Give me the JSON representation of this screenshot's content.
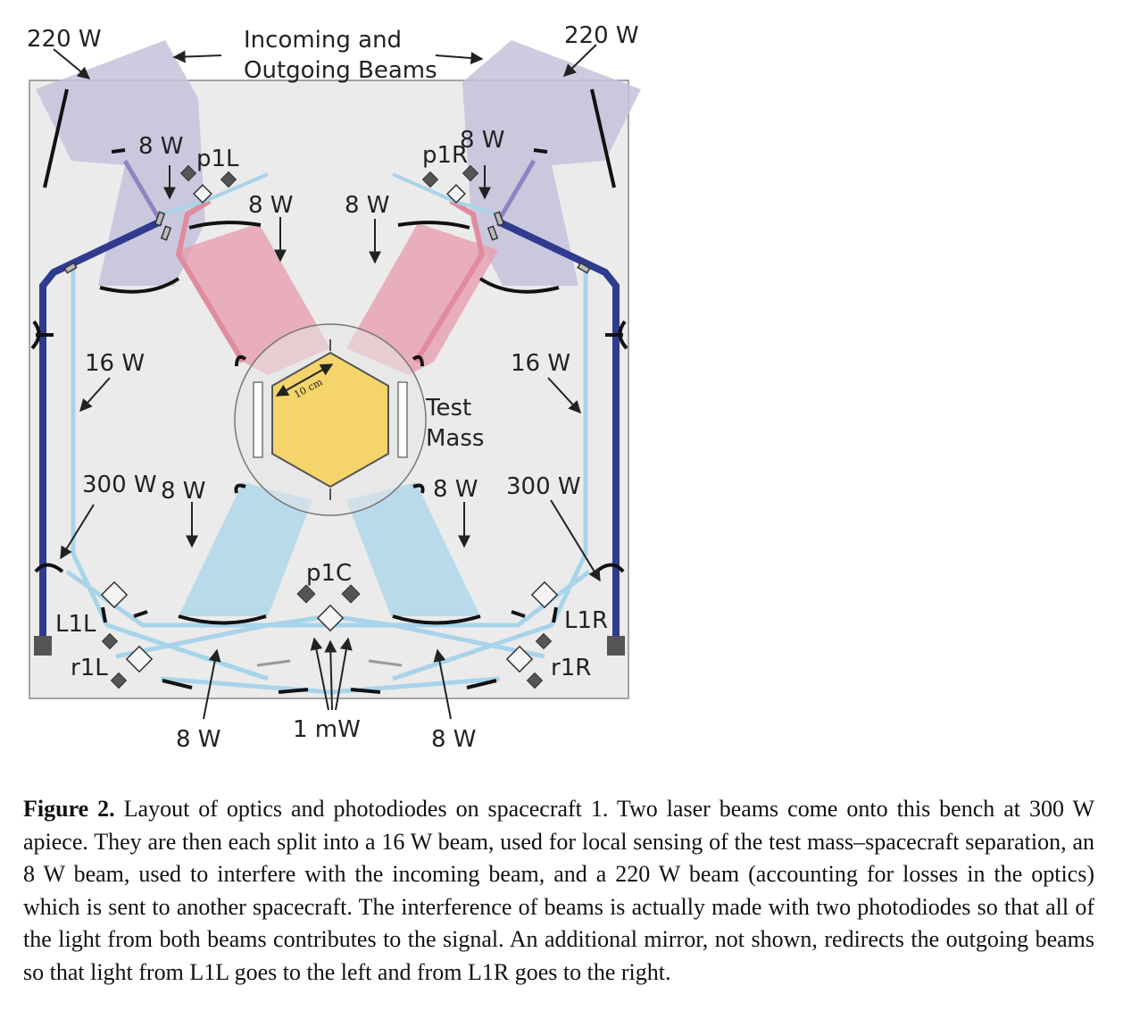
{
  "figure": {
    "labels": {
      "top_left_power": "220 W",
      "top_right_power": "220 W",
      "beams_line1": "Incoming and",
      "beams_line2": "Outgoing Beams",
      "p1l": "p1L",
      "p1r": "p1R",
      "p1c": "p1C",
      "l1l": "L1L",
      "l1r": "L1R",
      "r1l": "r1L",
      "r1r": "r1R",
      "w8_ul": "8 W",
      "w8_ur": "8 W",
      "w8_ml": "8 W",
      "w8_mr": "8 W",
      "w8_ll": "8 W",
      "w8_lr": "8 W",
      "w8_bl": "8 W",
      "w8_br": "8 W",
      "w16_l": "16 W",
      "w16_r": "16 W",
      "w300_l": "300 W",
      "w300_r": "300 W",
      "mw1": "1 mW",
      "test_line1": "Test",
      "test_line2": "Mass",
      "scale": "10 cm"
    },
    "colors": {
      "bench": "#ebebeb",
      "main_laser": "#2e3b8f",
      "outgoing_beam": "#c6c2dc",
      "red_beam": "#e79aab",
      "blue_beam": "#a8d4ea",
      "test_mass": "#f4d46b"
    }
  },
  "caption": {
    "lead": "Figure 2.",
    "text": "Layout of optics and photodiodes on spacecraft 1.  Two laser beams come onto this bench at 300 W apiece. They are then each split into a 16 W beam, used for local sensing of the test mass–spacecraft separation, an 8 W beam, used to interfere with the incoming beam, and a 220 W beam (accounting for losses in the optics) which is sent to another spacecraft. The interference of beams is actually made with two photodiodes so that all of the light from both beams contributes to the signal.  An additional mirror, not shown, redirects the outgoing beams so that light from L1L goes to the left and from L1R goes to the right."
  }
}
